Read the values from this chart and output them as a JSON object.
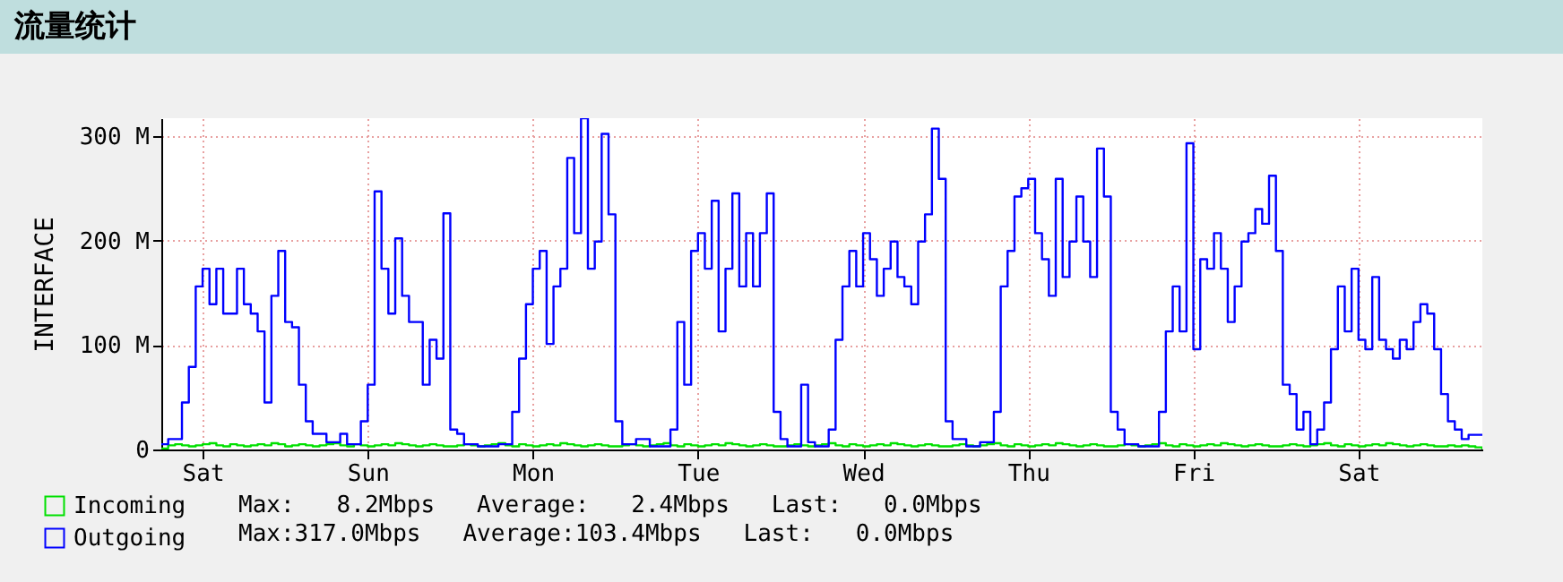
{
  "chart_data": {
    "type": "step",
    "title": "流量统计",
    "ylabel": "INTERFACE",
    "categories": [
      null,
      null,
      null,
      null,
      null,
      null,
      "Sat",
      null,
      null,
      null,
      null,
      null,
      null,
      null,
      null,
      null,
      null,
      null,
      null,
      null,
      null,
      null,
      null,
      null,
      null,
      null,
      null,
      null,
      null,
      null,
      "Sun",
      null,
      null,
      null,
      null,
      null,
      null,
      null,
      null,
      null,
      null,
      null,
      null,
      null,
      null,
      null,
      null,
      null,
      null,
      null,
      null,
      null,
      null,
      null,
      "Mon",
      null,
      null,
      null,
      null,
      null,
      null,
      null,
      null,
      null,
      null,
      null,
      null,
      null,
      null,
      null,
      null,
      null,
      null,
      null,
      null,
      null,
      null,
      null,
      "Tue",
      null,
      null,
      null,
      null,
      null,
      null,
      null,
      null,
      null,
      null,
      null,
      null,
      null,
      null,
      null,
      null,
      null,
      null,
      null,
      null,
      null,
      null,
      null,
      "Wed",
      null,
      null,
      null,
      null,
      null,
      null,
      null,
      null,
      null,
      null,
      null,
      null,
      null,
      null,
      null,
      null,
      null,
      null,
      null,
      null,
      null,
      null,
      null,
      "Thu",
      null,
      null,
      null,
      null,
      null,
      null,
      null,
      null,
      null,
      null,
      null,
      null,
      null,
      null,
      null,
      null,
      null,
      null,
      null,
      null,
      null,
      null,
      null,
      "Fri",
      null,
      null,
      null,
      null,
      null,
      null,
      null,
      null,
      null,
      null,
      null,
      null,
      null,
      null,
      null,
      null,
      null,
      null,
      null,
      null,
      null,
      null,
      null,
      "Sat",
      null,
      null,
      null,
      null,
      null,
      null,
      null,
      null,
      null,
      null,
      null,
      null,
      null,
      null,
      null,
      null,
      null,
      null
    ],
    "ylim": [
      0,
      317
    ],
    "yticks": [
      0,
      {
        "value": 100,
        "label": "100 M"
      },
      {
        "value": 200,
        "label": "200 M"
      },
      {
        "value": 300,
        "label": "300 M"
      }
    ],
    "grid": true,
    "legend": "bottom",
    "annotations": [
      "Max:   8.2Mbps   Average:   2.4Mbps   Last:   0.0Mbps",
      "Max:317.0Mbps   Average:103.4Mbps   Last:   0.0Mbps"
    ],
    "series": [
      {
        "name": "Incoming",
        "color": "#00e000",
        "values": [
          1,
          4,
          5,
          4,
          3,
          4,
          5,
          6,
          4,
          3,
          5,
          4,
          3,
          4,
          5,
          4,
          6,
          5,
          3,
          4,
          5,
          4,
          3,
          4,
          5,
          6,
          4,
          3,
          5,
          4,
          3,
          4,
          5,
          4,
          6,
          5,
          4,
          3,
          4,
          5,
          4,
          3,
          3,
          4,
          5,
          4,
          3,
          4,
          5,
          6,
          4,
          3,
          5,
          4,
          3,
          4,
          5,
          4,
          6,
          5,
          4,
          3,
          4,
          5,
          4,
          3,
          3,
          4,
          5,
          4,
          3,
          4,
          5,
          6,
          4,
          3,
          5,
          4,
          3,
          4,
          5,
          4,
          6,
          5,
          4,
          3,
          4,
          5,
          4,
          3,
          3,
          4,
          5,
          4,
          3,
          4,
          5,
          6,
          4,
          3,
          5,
          4,
          3,
          4,
          5,
          4,
          6,
          5,
          4,
          3,
          4,
          5,
          4,
          3,
          3,
          4,
          5,
          4,
          3,
          4,
          5,
          6,
          4,
          3,
          5,
          4,
          3,
          4,
          5,
          4,
          6,
          5,
          4,
          3,
          4,
          5,
          4,
          3,
          3,
          4,
          5,
          4,
          3,
          4,
          5,
          6,
          4,
          3,
          5,
          4,
          3,
          4,
          5,
          4,
          6,
          5,
          4,
          3,
          4,
          5,
          4,
          3,
          3,
          4,
          5,
          4,
          3,
          4,
          5,
          6,
          4,
          3,
          5,
          4,
          3,
          4,
          5,
          4,
          6,
          5,
          4,
          3,
          4,
          5,
          4,
          3,
          3,
          4,
          3,
          4,
          3,
          2,
          0
        ]
      },
      {
        "name": "Outgoing",
        "color": "#0000ff",
        "values": [
          5,
          10,
          10,
          45,
          79,
          156,
          173,
          139,
          173,
          130,
          130,
          173,
          139,
          130,
          113,
          45,
          147,
          190,
          122,
          117,
          62,
          27,
          15,
          15,
          7,
          7,
          15,
          5,
          5,
          27,
          62,
          247,
          173,
          130,
          202,
          147,
          122,
          122,
          62,
          105,
          87,
          226,
          19,
          15,
          5,
          5,
          3,
          3,
          3,
          5,
          5,
          36,
          87,
          139,
          173,
          190,
          101,
          156,
          173,
          279,
          207,
          317,
          173,
          199,
          302,
          225,
          27,
          5,
          5,
          10,
          10,
          3,
          3,
          3,
          19,
          122,
          62,
          190,
          207,
          173,
          238,
          113,
          173,
          245,
          156,
          207,
          156,
          207,
          245,
          36,
          10,
          3,
          3,
          62,
          7,
          3,
          3,
          19,
          105,
          156,
          190,
          156,
          207,
          182,
          147,
          173,
          199,
          165,
          156,
          139,
          199,
          225,
          307,
          259,
          27,
          10,
          10,
          3,
          3,
          7,
          7,
          36,
          156,
          190,
          242,
          250,
          259,
          207,
          182,
          147,
          259,
          165,
          199,
          242,
          199,
          165,
          288,
          242,
          36,
          19,
          5,
          5,
          3,
          3,
          3,
          36,
          113,
          156,
          113,
          293,
          96,
          182,
          173,
          207,
          173,
          122,
          156,
          199,
          207,
          230,
          216,
          262,
          190,
          62,
          53,
          19,
          36,
          5,
          19,
          45,
          96,
          156,
          113,
          173,
          105,
          96,
          165,
          105,
          96,
          87,
          105,
          96,
          122,
          139,
          130,
          96,
          53,
          27,
          19,
          10,
          14,
          14,
          14
        ]
      }
    ]
  }
}
